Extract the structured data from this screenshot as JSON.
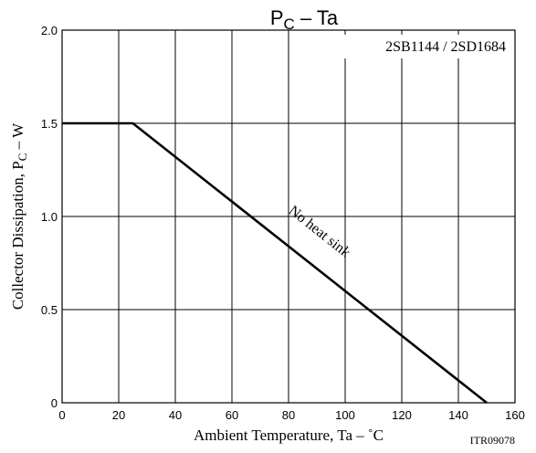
{
  "chart_data": {
    "type": "line",
    "title": {
      "main": "P",
      "sub": "C",
      "rest": " – Ta"
    },
    "part_label": "2SB1144 / 2SD1684",
    "doc_code": "ITR09078",
    "xlabel": "Ambient Temperature, Ta  –  ˚C",
    "ylabel": {
      "main": "Collector Dissipation, P",
      "sub": "C",
      "rest": "  –  W"
    },
    "xlim": [
      0,
      160
    ],
    "ylim": [
      0,
      2.0
    ],
    "x_ticks": [
      0,
      20,
      40,
      60,
      80,
      100,
      120,
      140,
      160
    ],
    "x_tick_labels": [
      "0",
      "20",
      "40",
      "60",
      "80",
      "100",
      "120",
      "140",
      "160"
    ],
    "y_ticks": [
      0,
      0.5,
      1.0,
      1.5,
      2.0
    ],
    "y_tick_labels": [
      "0",
      "0.5",
      "1.0",
      "1.5",
      "2.0"
    ],
    "grid": true,
    "series": [
      {
        "x": [
          0,
          25,
          150
        ],
        "y": [
          1.5,
          1.5,
          0
        ]
      }
    ],
    "annotations": [
      {
        "text": "No heat sink",
        "x": 90,
        "y": 0.9
      }
    ]
  }
}
